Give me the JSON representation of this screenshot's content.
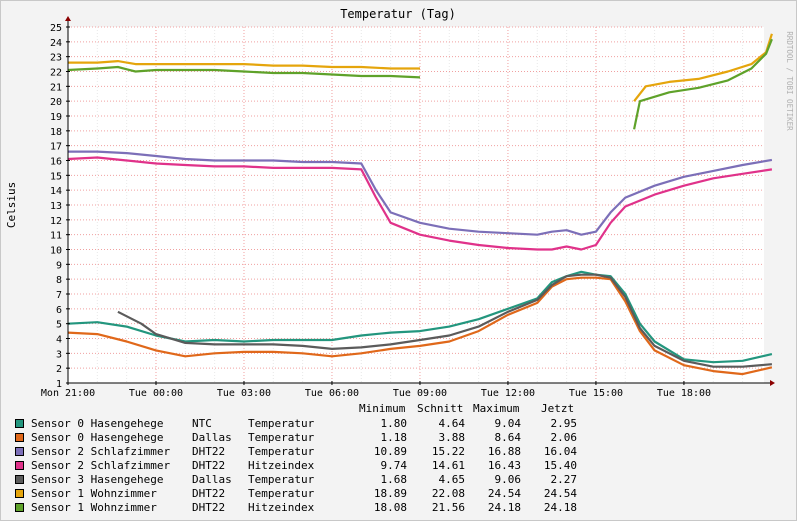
{
  "watermark": "RRDTOOL / TOBI OETIKER",
  "legend_header": {
    "min": "Minimum",
    "avg": "Schnitt",
    "max": "Maximum",
    "now": "Jetzt"
  },
  "legend": [
    {
      "label": "Sensor 0 Hasengehege",
      "type": "NTC",
      "kind": "Temperatur",
      "min": "1.80",
      "avg": "4.64",
      "max": "9.04",
      "now": "2.95",
      "color": "#23967e"
    },
    {
      "label": "Sensor 0 Hasengehege",
      "type": "Dallas",
      "kind": "Temperatur",
      "min": "1.18",
      "avg": "3.88",
      "max": "8.64",
      "now": "2.06",
      "color": "#e0681a"
    },
    {
      "label": "Sensor 2 Schlafzimmer",
      "type": "DHT22",
      "kind": "Temperatur",
      "min": "10.89",
      "avg": "15.22",
      "max": "16.88",
      "now": "16.04",
      "color": "#7c6fb8"
    },
    {
      "label": "Sensor 2 Schlafzimmer",
      "type": "DHT22",
      "kind": "Hitzeindex",
      "min": "9.74",
      "avg": "14.61",
      "max": "16.43",
      "now": "15.40",
      "color": "#e0328a"
    },
    {
      "label": "Sensor 3 Hasengehege",
      "type": "Dallas",
      "kind": "Temperatur",
      "min": "1.68",
      "avg": "4.65",
      "max": "9.06",
      "now": "2.27",
      "color": "#5b5b5b"
    },
    {
      "label": "Sensor 1 Wohnzimmer",
      "type": "DHT22",
      "kind": "Temperatur",
      "min": "18.89",
      "avg": "22.08",
      "max": "24.54",
      "now": "24.54",
      "color": "#e5a50c"
    },
    {
      "label": "Sensor 1 Wohnzimmer",
      "type": "DHT22",
      "kind": "Hitzeindex",
      "min": "18.08",
      "avg": "21.56",
      "max": "24.18",
      "now": "24.18",
      "color": "#5fa22a"
    }
  ],
  "chart_data": {
    "type": "line",
    "title": "Temperatur (Tag)",
    "ylabel": "Celsius",
    "xlabel": "",
    "ylim": [
      1,
      25
    ],
    "xlim": [
      0,
      24.6
    ],
    "yticks": [
      1,
      2,
      3,
      4,
      5,
      6,
      7,
      8,
      9,
      10,
      11,
      12,
      13,
      14,
      15,
      16,
      17,
      18,
      19,
      20,
      21,
      22,
      23,
      24,
      25
    ],
    "xticks": [
      {
        "pos": 0,
        "label": "Mon 21:00"
      },
      {
        "pos": 3,
        "label": "Tue 00:00"
      },
      {
        "pos": 6,
        "label": "Tue 03:00"
      },
      {
        "pos": 9,
        "label": "Tue 06:00"
      },
      {
        "pos": 12,
        "label": "Tue 09:00"
      },
      {
        "pos": 15,
        "label": "Tue 12:00"
      },
      {
        "pos": 18,
        "label": "Tue 15:00"
      },
      {
        "pos": 21,
        "label": "Tue 18:00"
      }
    ],
    "grid": true,
    "legend_position": "bottom",
    "series": [
      {
        "name": "Sensor 0 Hasengehege NTC Temperatur",
        "color": "#23967e",
        "points": [
          [
            0,
            5.0
          ],
          [
            1,
            5.1
          ],
          [
            2,
            4.8
          ],
          [
            3,
            4.2
          ],
          [
            4,
            3.8
          ],
          [
            5,
            3.9
          ],
          [
            6,
            3.8
          ],
          [
            7,
            3.9
          ],
          [
            8,
            3.9
          ],
          [
            9,
            3.9
          ],
          [
            10,
            4.2
          ],
          [
            11,
            4.4
          ],
          [
            12,
            4.5
          ],
          [
            13,
            4.8
          ],
          [
            14,
            5.3
          ],
          [
            15,
            6.0
          ],
          [
            16,
            6.7
          ],
          [
            16.5,
            7.8
          ],
          [
            17,
            8.2
          ],
          [
            17.5,
            8.5
          ],
          [
            18,
            8.3
          ],
          [
            18.5,
            8.2
          ],
          [
            19,
            7.0
          ],
          [
            19.5,
            5.0
          ],
          [
            20,
            3.8
          ],
          [
            21,
            2.6
          ],
          [
            22,
            2.4
          ],
          [
            23,
            2.5
          ],
          [
            24,
            2.95
          ]
        ]
      },
      {
        "name": "Sensor 0 Hasengehege Dallas Temperatur",
        "color": "#e0681a",
        "points": [
          [
            0,
            4.4
          ],
          [
            1,
            4.3
          ],
          [
            2,
            3.8
          ],
          [
            3,
            3.2
          ],
          [
            4,
            2.8
          ],
          [
            5,
            3.0
          ],
          [
            6,
            3.1
          ],
          [
            7,
            3.1
          ],
          [
            8,
            3.0
          ],
          [
            9,
            2.8
          ],
          [
            10,
            3.0
          ],
          [
            11,
            3.3
          ],
          [
            12,
            3.5
          ],
          [
            13,
            3.8
          ],
          [
            14,
            4.5
          ],
          [
            15,
            5.6
          ],
          [
            16,
            6.4
          ],
          [
            16.5,
            7.5
          ],
          [
            17,
            8.0
          ],
          [
            17.5,
            8.1
          ],
          [
            18,
            8.1
          ],
          [
            18.5,
            8.0
          ],
          [
            19,
            6.5
          ],
          [
            19.5,
            4.5
          ],
          [
            20,
            3.2
          ],
          [
            21,
            2.2
          ],
          [
            22,
            1.8
          ],
          [
            23,
            1.6
          ],
          [
            24,
            2.06
          ]
        ]
      },
      {
        "name": "Sensor 2 Schlafzimmer DHT22 Temperatur",
        "color": "#7c6fb8",
        "points": [
          [
            0,
            16.6
          ],
          [
            1,
            16.6
          ],
          [
            2,
            16.5
          ],
          [
            3,
            16.3
          ],
          [
            4,
            16.1
          ],
          [
            5,
            16.0
          ],
          [
            6,
            16.0
          ],
          [
            7,
            16.0
          ],
          [
            8,
            15.9
          ],
          [
            9,
            15.9
          ],
          [
            10,
            15.8
          ],
          [
            10.5,
            14.0
          ],
          [
            11,
            12.5
          ],
          [
            12,
            11.8
          ],
          [
            13,
            11.4
          ],
          [
            14,
            11.2
          ],
          [
            15,
            11.1
          ],
          [
            16,
            11.0
          ],
          [
            16.5,
            11.2
          ],
          [
            17,
            11.3
          ],
          [
            17.5,
            11.0
          ],
          [
            18,
            11.2
          ],
          [
            18.5,
            12.5
          ],
          [
            19,
            13.5
          ],
          [
            20,
            14.3
          ],
          [
            21,
            14.9
          ],
          [
            22,
            15.3
          ],
          [
            23,
            15.7
          ],
          [
            24,
            16.04
          ]
        ]
      },
      {
        "name": "Sensor 2 Schlafzimmer DHT22 Hitzeindex",
        "color": "#e0328a",
        "points": [
          [
            0,
            16.1
          ],
          [
            1,
            16.2
          ],
          [
            2,
            16.0
          ],
          [
            3,
            15.8
          ],
          [
            4,
            15.7
          ],
          [
            5,
            15.6
          ],
          [
            6,
            15.6
          ],
          [
            7,
            15.5
          ],
          [
            8,
            15.5
          ],
          [
            9,
            15.5
          ],
          [
            10,
            15.4
          ],
          [
            10.5,
            13.5
          ],
          [
            11,
            11.8
          ],
          [
            12,
            11.0
          ],
          [
            13,
            10.6
          ],
          [
            14,
            10.3
          ],
          [
            15,
            10.1
          ],
          [
            16,
            10.0
          ],
          [
            16.5,
            10.0
          ],
          [
            17,
            10.2
          ],
          [
            17.5,
            10.0
          ],
          [
            18,
            10.3
          ],
          [
            18.5,
            11.8
          ],
          [
            19,
            12.9
          ],
          [
            20,
            13.7
          ],
          [
            21,
            14.3
          ],
          [
            22,
            14.8
          ],
          [
            23,
            15.1
          ],
          [
            24,
            15.4
          ]
        ]
      },
      {
        "name": "Sensor 3 Hasengehege Dallas Temperatur",
        "color": "#5b5b5b",
        "points": [
          [
            1.7,
            5.8
          ],
          [
            2.5,
            5.0
          ],
          [
            3,
            4.3
          ],
          [
            4,
            3.7
          ],
          [
            5,
            3.6
          ],
          [
            6,
            3.6
          ],
          [
            7,
            3.6
          ],
          [
            8,
            3.5
          ],
          [
            9,
            3.3
          ],
          [
            10,
            3.4
          ],
          [
            11,
            3.6
          ],
          [
            12,
            3.9
          ],
          [
            13,
            4.2
          ],
          [
            14,
            4.8
          ],
          [
            15,
            5.8
          ],
          [
            16,
            6.6
          ],
          [
            16.5,
            7.6
          ],
          [
            17,
            8.2
          ],
          [
            17.5,
            8.3
          ],
          [
            18,
            8.3
          ],
          [
            18.5,
            8.1
          ],
          [
            19,
            6.8
          ],
          [
            19.5,
            4.7
          ],
          [
            20,
            3.5
          ],
          [
            21,
            2.5
          ],
          [
            22,
            2.1
          ],
          [
            23,
            2.1
          ],
          [
            24,
            2.27
          ]
        ]
      },
      {
        "name": "Sensor 1 Wohnzimmer DHT22 Temperatur",
        "color": "#e5a50c",
        "points": [
          [
            0,
            22.6
          ],
          [
            1,
            22.6
          ],
          [
            1.7,
            22.7
          ],
          [
            2.3,
            22.5
          ],
          [
            3,
            22.5
          ],
          [
            4,
            22.5
          ],
          [
            5,
            22.5
          ],
          [
            6,
            22.5
          ],
          [
            7,
            22.4
          ],
          [
            8,
            22.4
          ],
          [
            9,
            22.3
          ],
          [
            10,
            22.3
          ],
          [
            11,
            22.2
          ],
          [
            12,
            22.2
          ],
          null,
          [
            19.3,
            20.0
          ],
          [
            19.7,
            21.0
          ],
          [
            20.5,
            21.3
          ],
          [
            21.5,
            21.5
          ],
          [
            22.5,
            22.0
          ],
          [
            23.3,
            22.5
          ],
          [
            23.8,
            23.3
          ],
          [
            24,
            24.54
          ]
        ]
      },
      {
        "name": "Sensor 1 Wohnzimmer DHT22 Hitzeindex",
        "color": "#5fa22a",
        "points": [
          [
            0,
            22.1
          ],
          [
            1,
            22.2
          ],
          [
            1.7,
            22.3
          ],
          [
            2.3,
            22.0
          ],
          [
            3,
            22.1
          ],
          [
            4,
            22.1
          ],
          [
            5,
            22.1
          ],
          [
            6,
            22.0
          ],
          [
            7,
            21.9
          ],
          [
            8,
            21.9
          ],
          [
            9,
            21.8
          ],
          [
            10,
            21.7
          ],
          [
            11,
            21.7
          ],
          [
            12,
            21.6
          ],
          null,
          [
            19.3,
            18.1
          ],
          [
            19.5,
            20.0
          ],
          [
            20.5,
            20.6
          ],
          [
            21.5,
            20.9
          ],
          [
            22.5,
            21.4
          ],
          [
            23.3,
            22.2
          ],
          [
            23.8,
            23.2
          ],
          [
            24,
            24.18
          ]
        ]
      }
    ]
  }
}
